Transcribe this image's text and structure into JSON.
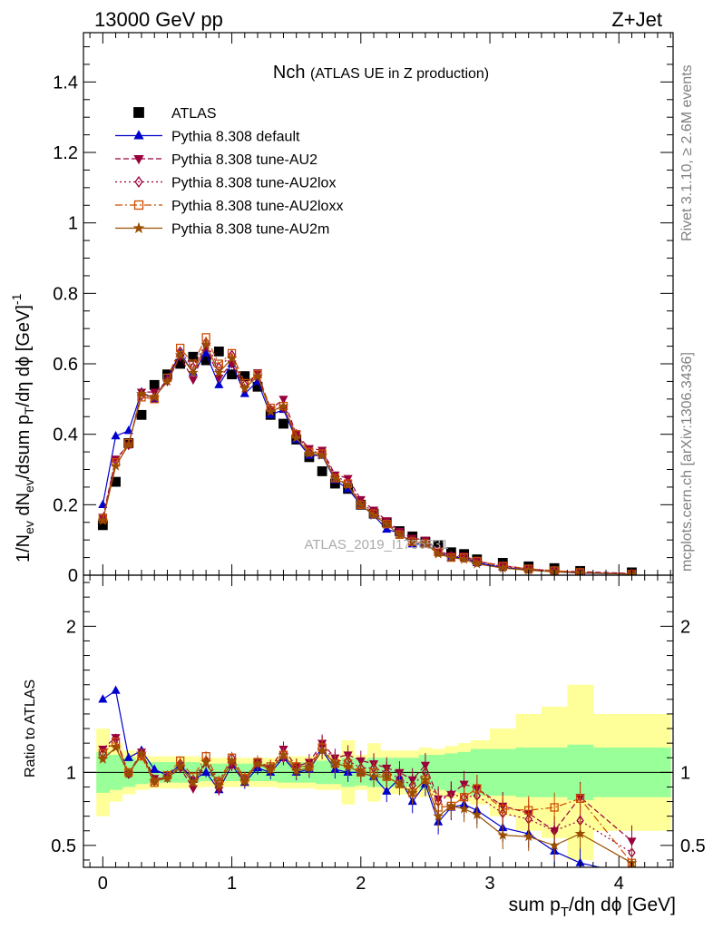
{
  "header": {
    "left_label": "13000 GeV pp",
    "right_label": "Z+Jet"
  },
  "side_labels": {
    "rivet": "Rivet 3.1.10, ≥ 2.6M events",
    "mcplots": "mcplots.cern.ch [arXiv:1306.3436]"
  },
  "watermark": "ATLAS_2019_I1736531",
  "chart_data": [
    {
      "type": "line",
      "panel": "main",
      "title": "Nch",
      "subtitle": "(ATLAS UE in Z production)",
      "ylabel": "1/N_ev dN_ev/dsum p_T/dη dϕ [GeV]^-1",
      "xlim": [
        -0.15,
        4.42
      ],
      "ylim": [
        0,
        1.54
      ],
      "y_ticks": [
        0,
        0.2,
        0.4,
        0.6,
        0.8,
        1,
        1.2,
        1.4
      ],
      "y_tick_labels": [
        "0",
        "0.2",
        "0.4",
        "0.6",
        "0.8",
        "1",
        "1.2",
        "1.4"
      ],
      "legend_position": "top-left",
      "x": [
        0.0,
        0.1,
        0.2,
        0.3,
        0.4,
        0.5,
        0.6,
        0.7,
        0.8,
        0.9,
        1.0,
        1.1,
        1.2,
        1.3,
        1.4,
        1.5,
        1.6,
        1.7,
        1.8,
        1.9,
        2.0,
        2.1,
        2.2,
        2.3,
        2.4,
        2.5,
        2.6,
        2.7,
        2.8,
        2.9,
        3.1,
        3.3,
        3.5,
        3.7,
        4.1
      ],
      "series": [
        {
          "name": "ATLAS",
          "color": "#000000",
          "marker": "square-filled",
          "dash": "none",
          "values": [
            0.142,
            0.265,
            0.375,
            0.455,
            0.54,
            0.57,
            0.6,
            0.62,
            0.61,
            0.635,
            0.57,
            0.565,
            0.535,
            0.455,
            0.43,
            0.385,
            0.335,
            0.295,
            0.26,
            0.245,
            0.2,
            0.175,
            0.15,
            0.125,
            0.11,
            0.095,
            0.085,
            0.065,
            0.06,
            0.045,
            0.035,
            0.025,
            0.02,
            0.012,
            0.008
          ]
        },
        {
          "name": "Pythia 8.308 default",
          "color": "#0000cc",
          "marker": "triangle-up-filled",
          "dash": "none",
          "values": [
            0.2,
            0.395,
            0.41,
            0.52,
            0.5,
            0.56,
            0.63,
            0.575,
            0.63,
            0.54,
            0.6,
            0.515,
            0.55,
            0.455,
            0.47,
            0.385,
            0.34,
            0.34,
            0.27,
            0.245,
            0.2,
            0.17,
            0.13,
            0.12,
            0.088,
            0.088,
            0.065,
            0.05,
            0.05,
            0.035,
            0.022,
            0.015,
            0.01,
            0.006,
            0.003
          ]
        },
        {
          "name": "Pythia 8.308 tune-AU2",
          "color": "#99003d",
          "marker": "triangle-down-filled",
          "dash": "6,3",
          "values": [
            0.165,
            0.33,
            0.37,
            0.52,
            0.52,
            0.55,
            0.62,
            0.555,
            0.65,
            0.56,
            0.6,
            0.53,
            0.575,
            0.47,
            0.5,
            0.4,
            0.36,
            0.355,
            0.285,
            0.275,
            0.215,
            0.185,
            0.155,
            0.125,
            0.105,
            0.1,
            0.07,
            0.055,
            0.055,
            0.04,
            0.027,
            0.018,
            0.012,
            0.01,
            0.005
          ]
        },
        {
          "name": "Pythia 8.308 tune-AU2lox",
          "color": "#99003d",
          "marker": "diamond-open",
          "dash": "2,3",
          "values": [
            0.16,
            0.325,
            0.37,
            0.51,
            0.505,
            0.555,
            0.635,
            0.59,
            0.66,
            0.59,
            0.625,
            0.54,
            0.565,
            0.47,
            0.475,
            0.4,
            0.35,
            0.35,
            0.28,
            0.265,
            0.205,
            0.18,
            0.15,
            0.12,
            0.1,
            0.095,
            0.068,
            0.055,
            0.05,
            0.038,
            0.025,
            0.017,
            0.012,
            0.008,
            0.004
          ]
        },
        {
          "name": "Pythia 8.308 tune-AU2loxx",
          "color": "#cc4c00",
          "marker": "square-open",
          "dash": "8,3,2,3",
          "values": [
            0.16,
            0.32,
            0.375,
            0.505,
            0.5,
            0.56,
            0.645,
            0.6,
            0.675,
            0.6,
            0.63,
            0.545,
            0.57,
            0.475,
            0.48,
            0.4,
            0.35,
            0.345,
            0.275,
            0.26,
            0.2,
            0.175,
            0.145,
            0.115,
            0.095,
            0.09,
            0.065,
            0.05,
            0.05,
            0.04,
            0.026,
            0.018,
            0.013,
            0.008,
            0.003
          ]
        },
        {
          "name": "Pythia 8.308 tune-AU2m",
          "color": "#994d00",
          "marker": "star-filled",
          "dash": "none",
          "values": [
            0.155,
            0.31,
            0.37,
            0.515,
            0.505,
            0.55,
            0.625,
            0.575,
            0.655,
            0.575,
            0.615,
            0.53,
            0.565,
            0.465,
            0.48,
            0.39,
            0.345,
            0.34,
            0.275,
            0.255,
            0.2,
            0.17,
            0.145,
            0.115,
            0.095,
            0.09,
            0.06,
            0.05,
            0.045,
            0.032,
            0.02,
            0.014,
            0.01,
            0.007,
            0.003
          ]
        }
      ]
    },
    {
      "type": "line",
      "panel": "ratio",
      "ylabel": "Ratio to ATLAS",
      "xlabel": "sum p_T/dη dϕ [GeV]",
      "xlim": [
        -0.15,
        4.42
      ],
      "ylim": [
        0.35,
        2.35
      ],
      "x_ticks": [
        0,
        1,
        2,
        3,
        4
      ],
      "x_tick_labels": [
        "0",
        "1",
        "2",
        "3",
        "4"
      ],
      "y_ticks": [
        0.5,
        1,
        2
      ],
      "y_tick_labels": [
        "0.5",
        "1",
        "2"
      ],
      "reference_line": 1,
      "bands": {
        "bin_edges": [
          -0.05,
          0.05,
          0.15,
          0.25,
          0.35,
          0.45,
          0.55,
          0.65,
          0.75,
          0.85,
          0.95,
          1.05,
          1.15,
          1.25,
          1.35,
          1.45,
          1.55,
          1.65,
          1.75,
          1.85,
          1.95,
          2.05,
          2.15,
          2.25,
          2.35,
          2.45,
          2.55,
          2.65,
          2.75,
          2.85,
          3.0,
          3.2,
          3.4,
          3.6,
          3.8,
          4.4
        ],
        "stat": {
          "color": "#99ff99",
          "lo": [
            0.86,
            0.88,
            0.9,
            0.92,
            0.93,
            0.93,
            0.93,
            0.93,
            0.94,
            0.94,
            0.94,
            0.94,
            0.94,
            0.94,
            0.93,
            0.93,
            0.93,
            0.92,
            0.92,
            0.9,
            0.91,
            0.9,
            0.9,
            0.9,
            0.9,
            0.88,
            0.88,
            0.87,
            0.86,
            0.84,
            0.84,
            0.83,
            0.83,
            0.81,
            0.83
          ],
          "hi": [
            1.14,
            1.12,
            1.1,
            1.08,
            1.07,
            1.07,
            1.07,
            1.07,
            1.06,
            1.06,
            1.06,
            1.06,
            1.06,
            1.06,
            1.07,
            1.07,
            1.07,
            1.08,
            1.08,
            1.1,
            1.09,
            1.1,
            1.1,
            1.1,
            1.1,
            1.12,
            1.12,
            1.13,
            1.14,
            1.16,
            1.16,
            1.17,
            1.17,
            1.19,
            1.17
          ]
        },
        "total": {
          "color": "#ffff99",
          "lo": [
            0.7,
            0.8,
            0.85,
            0.88,
            0.89,
            0.89,
            0.89,
            0.89,
            0.9,
            0.9,
            0.9,
            0.9,
            0.9,
            0.9,
            0.89,
            0.89,
            0.89,
            0.88,
            0.88,
            0.78,
            0.88,
            0.8,
            0.85,
            0.85,
            0.85,
            0.83,
            0.84,
            0.82,
            0.8,
            0.78,
            0.7,
            0.6,
            0.55,
            0.4,
            0.6
          ],
          "hi": [
            1.3,
            1.2,
            1.15,
            1.12,
            1.11,
            1.11,
            1.11,
            1.11,
            1.1,
            1.1,
            1.1,
            1.1,
            1.1,
            1.1,
            1.11,
            1.11,
            1.11,
            1.12,
            1.12,
            1.22,
            1.12,
            1.2,
            1.15,
            1.15,
            1.15,
            1.17,
            1.16,
            1.18,
            1.2,
            1.22,
            1.3,
            1.4,
            1.45,
            1.6,
            1.4
          ]
        }
      },
      "x": [
        0.0,
        0.1,
        0.2,
        0.3,
        0.4,
        0.5,
        0.6,
        0.7,
        0.8,
        0.9,
        1.0,
        1.1,
        1.2,
        1.3,
        1.4,
        1.5,
        1.6,
        1.7,
        1.8,
        1.9,
        2.0,
        2.1,
        2.2,
        2.3,
        2.4,
        2.5,
        2.6,
        2.7,
        2.8,
        2.9,
        3.1,
        3.3,
        3.5,
        3.7,
        4.1
      ],
      "series": [
        {
          "name": "Pythia 8.308 default",
          "color": "#0000cc",
          "marker": "triangle-up-filled",
          "dash": "none",
          "values": [
            1.5,
            1.56,
            1.1,
            1.15,
            1.02,
            0.98,
            1.05,
            0.95,
            1.0,
            0.88,
            1.05,
            0.93,
            1.03,
            1.0,
            1.1,
            1.0,
            1.02,
            1.15,
            1.02,
            1.0,
            1.0,
            0.97,
            0.87,
            0.96,
            0.8,
            0.92,
            0.66,
            0.76,
            0.78,
            0.74,
            0.62,
            0.58,
            0.46,
            0.38,
            0.3
          ]
        },
        {
          "name": "Pythia 8.308 tune-AU2",
          "color": "#99003d",
          "marker": "triangle-down-filled",
          "dash": "6,3",
          "values": [
            1.16,
            1.24,
            0.99,
            1.14,
            0.96,
            0.96,
            1.03,
            0.89,
            1.07,
            0.88,
            1.05,
            0.94,
            1.07,
            1.03,
            1.16,
            1.04,
            1.07,
            1.2,
            1.1,
            1.12,
            1.08,
            1.06,
            1.03,
            1.0,
            0.95,
            1.05,
            0.82,
            0.85,
            0.92,
            0.89,
            0.77,
            0.72,
            0.6,
            0.83,
            0.53
          ]
        },
        {
          "name": "Pythia 8.308 tune-AU2lox",
          "color": "#99003d",
          "marker": "diamond-open",
          "dash": "2,3",
          "values": [
            1.13,
            1.23,
            0.99,
            1.12,
            0.94,
            0.97,
            1.06,
            0.95,
            1.08,
            0.93,
            1.1,
            0.96,
            1.06,
            1.03,
            1.1,
            1.04,
            1.04,
            1.19,
            1.08,
            1.08,
            1.03,
            1.03,
            1.0,
            0.96,
            0.91,
            1.0,
            0.8,
            0.85,
            0.83,
            0.84,
            0.72,
            0.68,
            0.6,
            0.67,
            0.45
          ]
        },
        {
          "name": "Pythia 8.308 tune-AU2loxx",
          "color": "#cc4c00",
          "marker": "square-open",
          "dash": "8,3,2,3",
          "values": [
            1.13,
            1.21,
            1.0,
            1.11,
            0.93,
            0.98,
            1.08,
            0.97,
            1.11,
            0.94,
            1.1,
            0.96,
            1.07,
            1.04,
            1.12,
            1.04,
            1.04,
            1.17,
            1.06,
            1.06,
            1.0,
            1.0,
            0.97,
            0.92,
            0.86,
            0.95,
            0.76,
            0.77,
            0.83,
            0.89,
            0.75,
            0.74,
            0.76,
            0.82,
            0.38
          ]
        },
        {
          "name": "Pythia 8.308 tune-AU2m",
          "color": "#994d00",
          "marker": "star-filled",
          "dash": "none",
          "values": [
            1.09,
            1.17,
            0.99,
            1.13,
            0.94,
            0.96,
            1.04,
            0.93,
            1.07,
            0.91,
            1.08,
            0.94,
            1.06,
            1.02,
            1.12,
            1.01,
            1.03,
            1.15,
            1.06,
            1.04,
            1.0,
            0.97,
            0.97,
            0.92,
            0.86,
            0.95,
            0.7,
            0.77,
            0.75,
            0.71,
            0.57,
            0.56,
            0.5,
            0.58,
            0.38
          ]
        }
      ]
    }
  ]
}
